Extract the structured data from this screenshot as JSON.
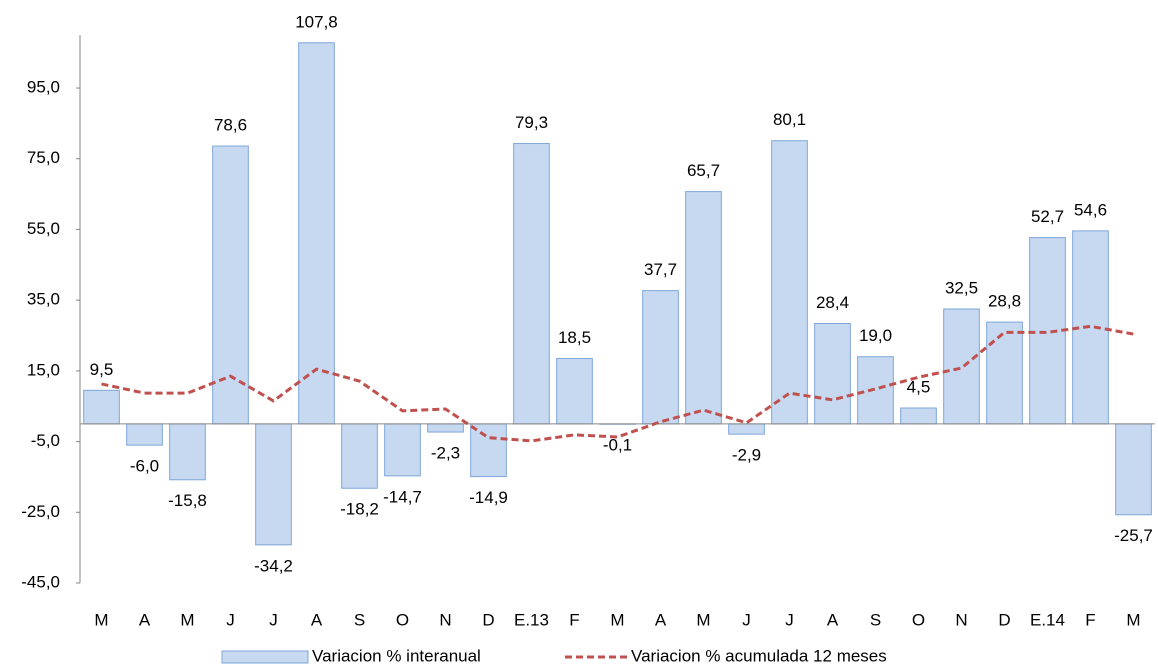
{
  "chart_data": {
    "type": "bar",
    "categories": [
      "M",
      "A",
      "M",
      "J",
      "J",
      "A",
      "S",
      "O",
      "N",
      "D",
      "E.13",
      "F",
      "M",
      "A",
      "M",
      "J",
      "J",
      "A",
      "S",
      "O",
      "N",
      "D",
      "E.14",
      "F",
      "M"
    ],
    "series": [
      {
        "name": "Variacion % interanual",
        "type": "bar",
        "color": "#c6d9f1",
        "stroke": "#7ea6d8",
        "values": [
          9.5,
          -6.0,
          -15.8,
          78.6,
          -34.2,
          107.8,
          -18.2,
          -14.7,
          -2.3,
          -14.9,
          79.3,
          18.5,
          -0.1,
          37.7,
          65.7,
          -2.9,
          80.1,
          28.4,
          19.0,
          4.5,
          32.5,
          28.8,
          52.7,
          54.6,
          -25.7
        ],
        "value_labels": [
          "9,5",
          "-6,0",
          "-15,8",
          "78,6",
          "-34,2",
          "107,8",
          "-18,2",
          "-14,7",
          "-2,3",
          "-14,9",
          "79,3",
          "18,5",
          "-0,1",
          "37,7",
          "65,7",
          "-2,9",
          "80,1",
          "28,4",
          "19,0",
          "4,5",
          "32,5",
          "28,8",
          "52,7",
          "54,6",
          "-25,7"
        ]
      },
      {
        "name": "Variacion % acumulada  12 meses",
        "type": "line",
        "color": "#c0504d",
        "dashed": true,
        "values": [
          11.3,
          8.7,
          8.7,
          13.5,
          6.5,
          15.5,
          12.1,
          3.7,
          4.2,
          -3.9,
          -4.8,
          -3.1,
          -3.7,
          0.6,
          3.9,
          0.3,
          8.7,
          6.8,
          9.9,
          13.2,
          15.8,
          25.9,
          25.9,
          27.6,
          25.4
        ]
      }
    ],
    "ylim": [
      -45,
      110
    ],
    "yticks": [
      {
        "value": -45,
        "label": "-45,0"
      },
      {
        "value": -25,
        "label": "-25,0"
      },
      {
        "value": -5,
        "label": "-5,0"
      },
      {
        "value": 15,
        "label": "15,0"
      },
      {
        "value": 35,
        "label": "35,0"
      },
      {
        "value": 55,
        "label": "55,0"
      },
      {
        "value": 75,
        "label": "75,0"
      },
      {
        "value": 95,
        "label": "95,0"
      }
    ],
    "grid": false,
    "legend": "bottom"
  }
}
